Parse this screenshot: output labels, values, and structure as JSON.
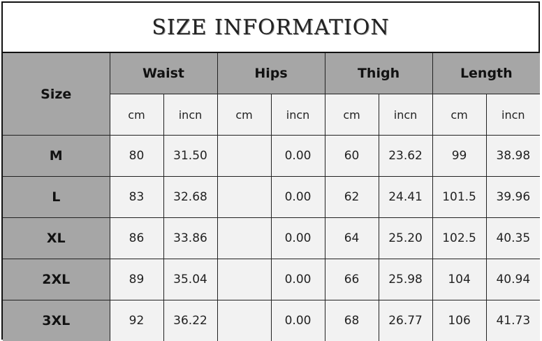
{
  "title": "SIZE INFORMATION",
  "size_header": "Size",
  "groups": [
    "Waist",
    "Hips",
    "Thigh",
    "Length"
  ],
  "units": [
    "cm",
    "incn",
    "cm",
    "incn",
    "cm",
    "incn",
    "cm",
    "incn"
  ],
  "rows": [
    {
      "size": "M",
      "values": [
        "80",
        "31.50",
        "",
        "0.00",
        "60",
        "23.62",
        "99",
        "38.98"
      ]
    },
    {
      "size": "L",
      "values": [
        "83",
        "32.68",
        "",
        "0.00",
        "62",
        "24.41",
        "101.5",
        "39.96"
      ]
    },
    {
      "size": "XL",
      "values": [
        "86",
        "33.86",
        "",
        "0.00",
        "64",
        "25.20",
        "102.5",
        "40.35"
      ]
    },
    {
      "size": "2XL",
      "values": [
        "89",
        "35.04",
        "",
        "0.00",
        "66",
        "25.98",
        "104",
        "40.94"
      ]
    },
    {
      "size": "3XL",
      "values": [
        "92",
        "36.22",
        "",
        "0.00",
        "68",
        "26.77",
        "106",
        "41.73"
      ]
    }
  ]
}
